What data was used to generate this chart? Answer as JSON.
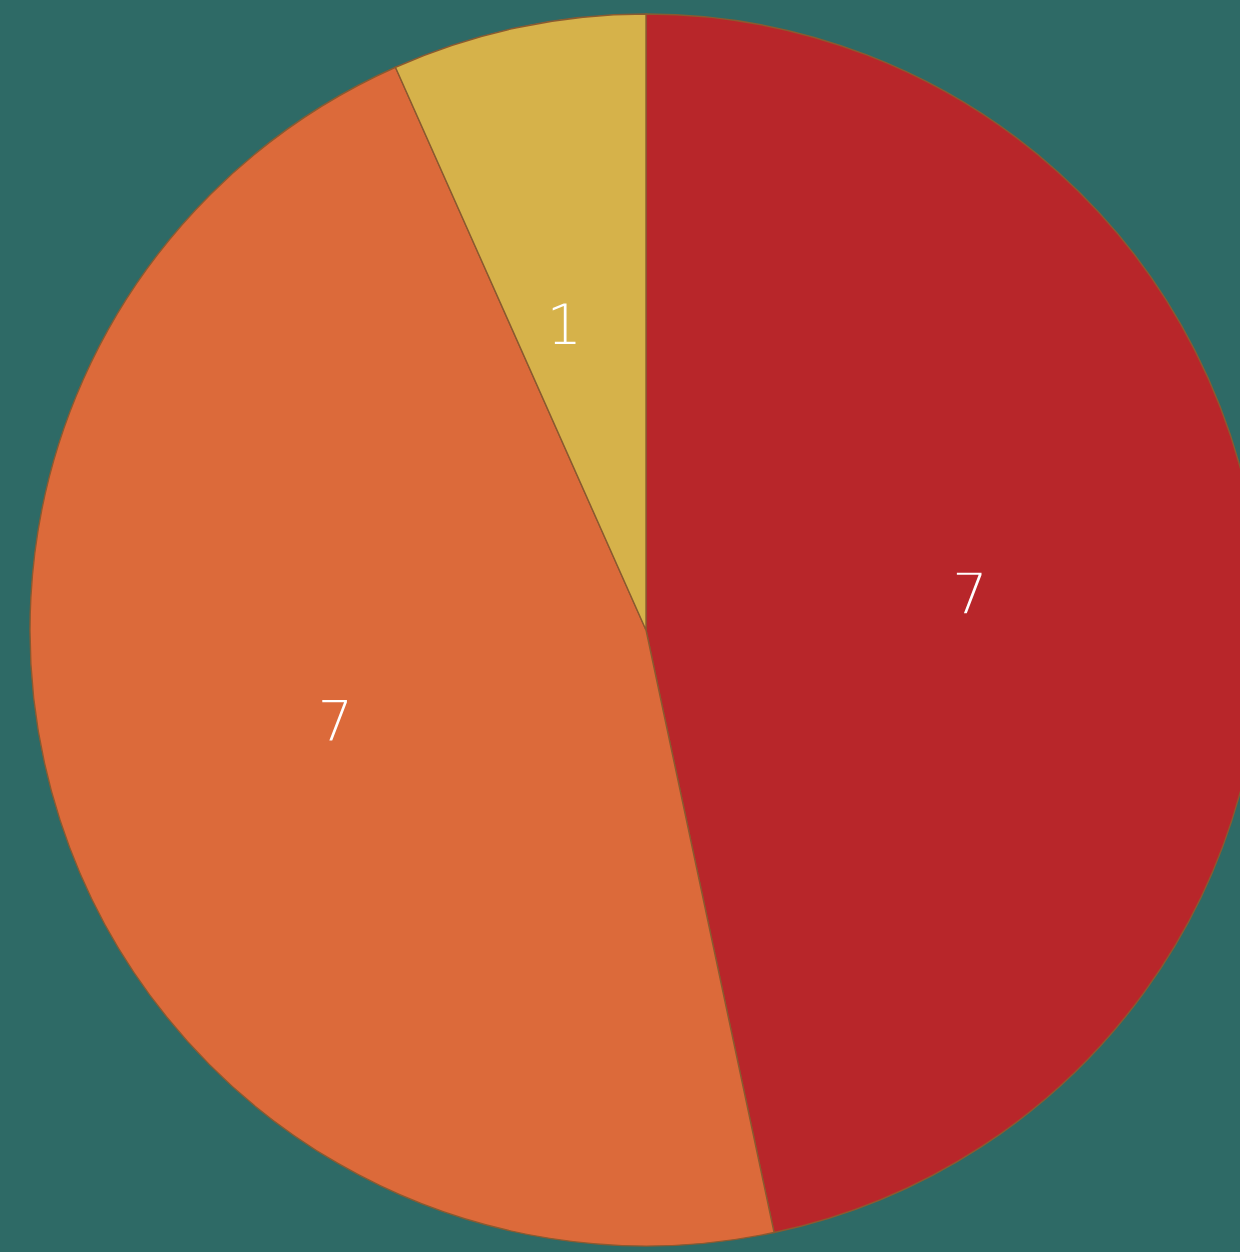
{
  "chart_data": {
    "type": "pie",
    "categories": [
      null,
      null,
      null
    ],
    "values": [
      7,
      7,
      1
    ],
    "colors": [
      "#b8262a",
      "#dc6a3a",
      "#d6b24a"
    ],
    "data_labels": true
  }
}
